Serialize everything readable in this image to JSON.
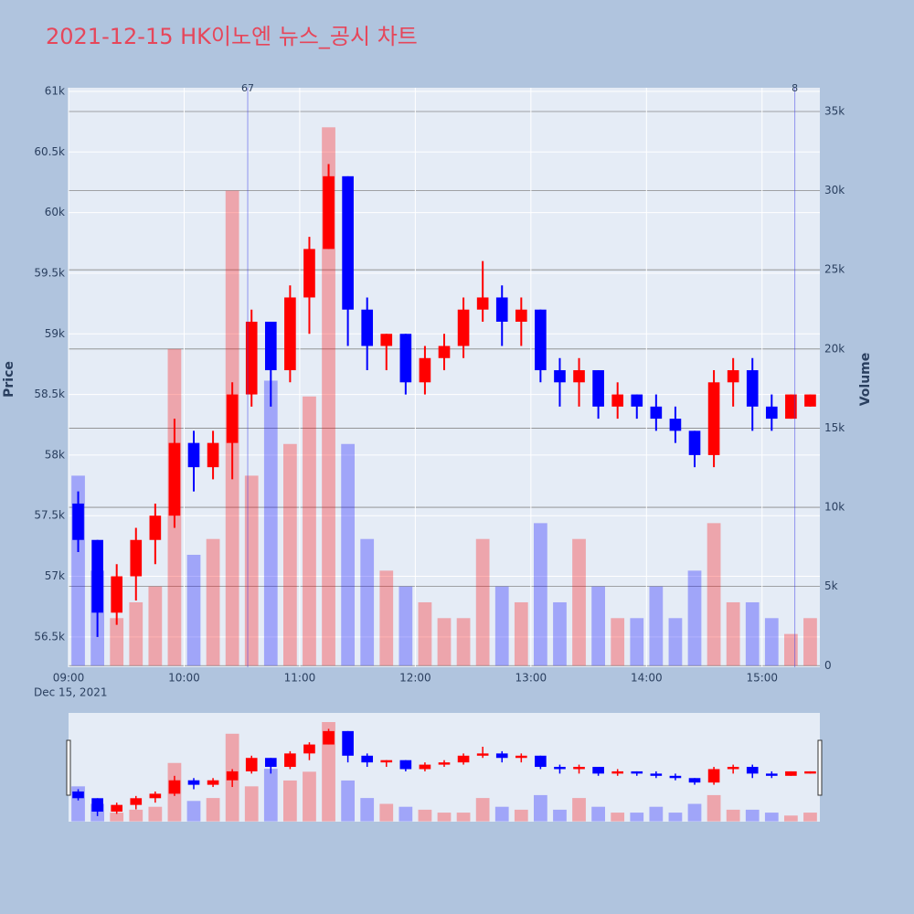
{
  "chart_data": {
    "type": "candlestick",
    "title": "2021-12-15 HK이노엔 뉴스_공시 차트",
    "x_date_label": "Dec 15, 2021",
    "y_label": "Price",
    "y2_label": "Volume",
    "increasing_color": "#ff0000",
    "decreasing_color": "#0000ff",
    "grid": true,
    "x": [
      "09:00",
      "09:10",
      "09:20",
      "09:30",
      "09:40",
      "09:50",
      "10:00",
      "10:10",
      "10:20",
      "10:30",
      "10:40",
      "10:50",
      "11:00",
      "11:10",
      "11:20",
      "11:30",
      "11:40",
      "11:50",
      "12:00",
      "12:10",
      "12:20",
      "12:30",
      "12:40",
      "12:50",
      "13:00",
      "13:10",
      "13:20",
      "13:30",
      "13:40",
      "13:50",
      "14:00",
      "14:10",
      "14:20",
      "14:30",
      "14:40",
      "14:50",
      "15:00",
      "15:10",
      "15:20"
    ],
    "open": [
      57600,
      57300,
      56700,
      57000,
      57300,
      57500,
      58100,
      57900,
      58100,
      58500,
      59100,
      58700,
      59300,
      59700,
      60300,
      59200,
      58900,
      59000,
      58600,
      58800,
      58900,
      59200,
      59300,
      59100,
      59200,
      58700,
      58600,
      58700,
      58400,
      58500,
      58400,
      58300,
      58200,
      58000,
      58600,
      58700,
      58400,
      58300,
      58400
    ],
    "high": [
      57700,
      57300,
      57100,
      57400,
      57600,
      58300,
      58200,
      58200,
      58600,
      59200,
      59100,
      59400,
      59800,
      60400,
      60300,
      59300,
      59000,
      59000,
      58900,
      59000,
      59300,
      59600,
      59400,
      59300,
      59200,
      58800,
      58800,
      58700,
      58600,
      58500,
      58500,
      58400,
      58200,
      58700,
      58800,
      58800,
      58500,
      58500,
      58500
    ],
    "low": [
      57200,
      56500,
      56600,
      56800,
      57100,
      57400,
      57700,
      57800,
      57800,
      58400,
      58400,
      58600,
      59000,
      59700,
      58900,
      58700,
      58700,
      58500,
      58500,
      58700,
      58800,
      59100,
      58900,
      58900,
      58600,
      58400,
      58400,
      58300,
      58300,
      58300,
      58200,
      58100,
      57900,
      57900,
      58400,
      58200,
      58200,
      58300,
      58400
    ],
    "close": [
      57300,
      56700,
      57000,
      57300,
      57500,
      58100,
      57900,
      58100,
      58500,
      59100,
      58700,
      59300,
      59700,
      60300,
      59200,
      58900,
      59000,
      58600,
      58800,
      58900,
      59200,
      59300,
      59100,
      59200,
      58700,
      58600,
      58700,
      58400,
      58500,
      58400,
      58300,
      58200,
      58000,
      58600,
      58700,
      58400,
      58300,
      58500,
      58500
    ],
    "volume": [
      12000,
      6000,
      3000,
      4000,
      5000,
      20000,
      7000,
      8000,
      30000,
      12000,
      18000,
      14000,
      17000,
      34000,
      14000,
      8000,
      6000,
      5000,
      4000,
      3000,
      3000,
      8000,
      5000,
      4000,
      9000,
      4000,
      8000,
      5000,
      3000,
      3000,
      5000,
      3000,
      6000,
      9000,
      4000,
      4000,
      3000,
      2000,
      3000
    ],
    "xlim": [
      "09:00",
      "15:30"
    ],
    "xticks": [
      "09:00",
      "10:00",
      "11:00",
      "12:00",
      "13:00",
      "14:00",
      "15:00"
    ],
    "ylim": [
      56250,
      61030
    ],
    "yticks": [
      {
        "value": 56500,
        "label": "56.5k"
      },
      {
        "value": 57000,
        "label": "57k"
      },
      {
        "value": 57500,
        "label": "57.5k"
      },
      {
        "value": 58000,
        "label": "58k"
      },
      {
        "value": 58500,
        "label": "58.5k"
      },
      {
        "value": 59000,
        "label": "59k"
      },
      {
        "value": 59500,
        "label": "59.5k"
      },
      {
        "value": 60000,
        "label": "60k"
      },
      {
        "value": 60500,
        "label": "60.5k"
      },
      {
        "value": 61000,
        "label": "61k"
      }
    ],
    "y2lim": [
      -100,
      36500
    ],
    "y2ticks": [
      0,
      {
        "value": 5000,
        "label": "5k"
      },
      {
        "value": 10000,
        "label": "10k"
      },
      {
        "value": 15000,
        "label": "15k"
      },
      {
        "value": 20000,
        "label": "20k"
      },
      {
        "value": 25000,
        "label": "25k"
      },
      {
        "value": 30000,
        "label": "30k"
      },
      {
        "value": 35000,
        "label": "35k"
      }
    ],
    "annotations": [
      {
        "x": "10:33",
        "text": "67"
      },
      {
        "x": "15:17",
        "text": "8"
      }
    ]
  }
}
